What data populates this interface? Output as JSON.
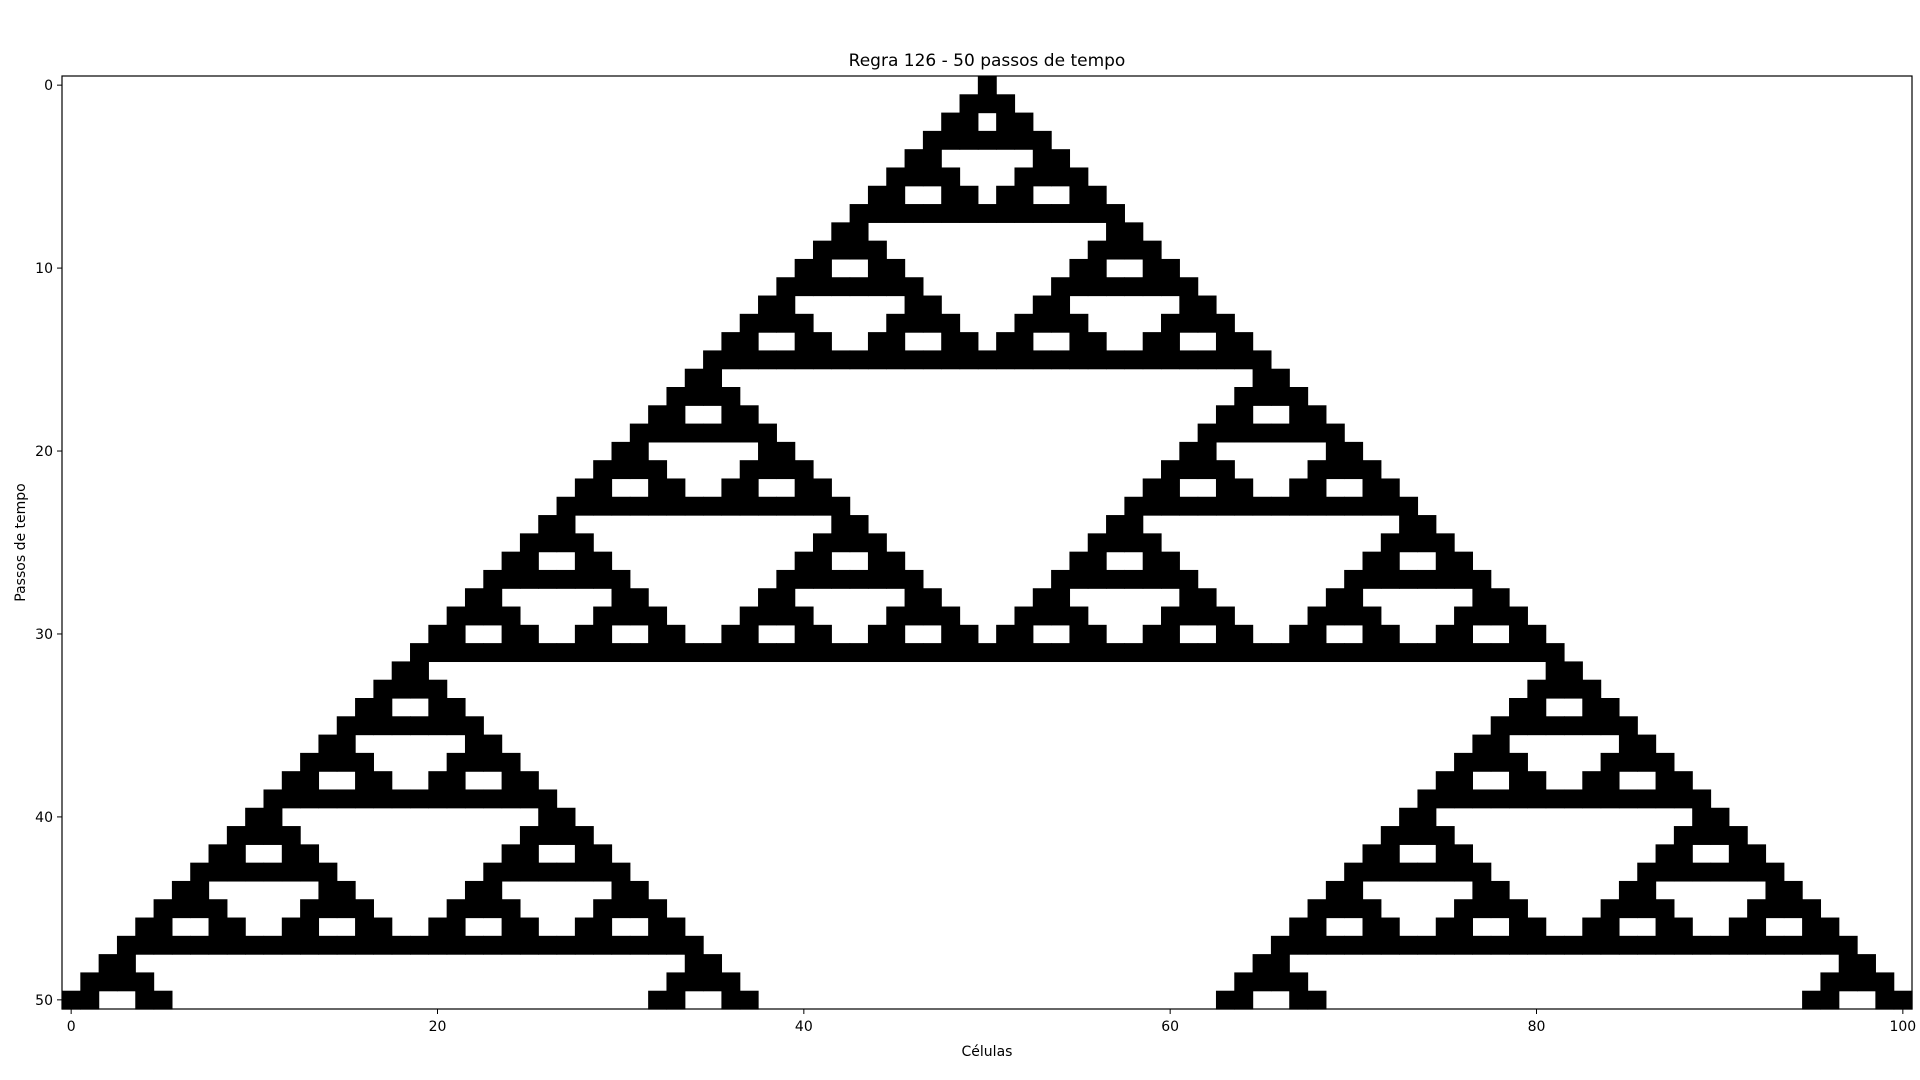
{
  "chart_data": {
    "type": "heatmap",
    "title": "Regra 126 - 50 passos de tempo",
    "xlabel": "Células",
    "ylabel": "Passos de tempo",
    "rule": 126,
    "steps": 50,
    "cells": 101,
    "initial_active_cell": 50,
    "xlim": [
      -0.5,
      100.5
    ],
    "ylim": [
      50.5,
      -0.5
    ],
    "xticks": [
      0,
      20,
      40,
      60,
      80,
      100
    ],
    "yticks": [
      0,
      10,
      20,
      30,
      40,
      50
    ],
    "colormap": {
      "active": "#000000",
      "inactive": "#ffffff"
    },
    "grid": false
  }
}
